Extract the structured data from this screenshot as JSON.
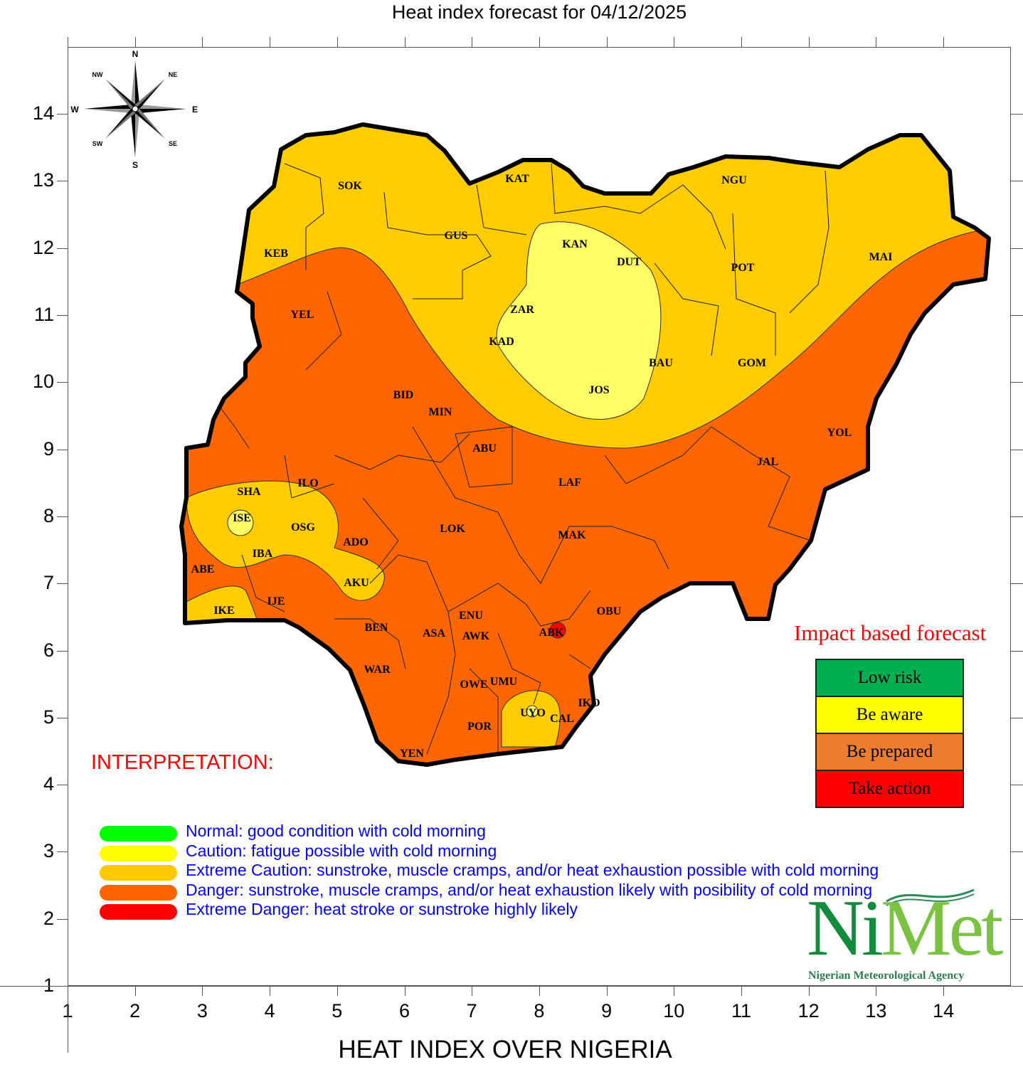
{
  "title": "Heat index forecast for 04/12/2025",
  "xlabel": "HEAT INDEX OVER NIGERIA",
  "axes": {
    "x_ticks": [
      "1",
      "2",
      "3",
      "4",
      "5",
      "6",
      "7",
      "8",
      "9",
      "10",
      "11",
      "12",
      "13",
      "14"
    ],
    "y_ticks": [
      "14",
      "13",
      "12",
      "11",
      "10",
      "9",
      "8",
      "7",
      "6",
      "5",
      "4",
      "3",
      "2",
      "1"
    ]
  },
  "compass": {
    "n": "N",
    "s": "S",
    "e": "E",
    "w": "W",
    "ne": "NE",
    "nw": "NW",
    "se": "SE",
    "sw": "SW"
  },
  "states": [
    "SOK",
    "KAT",
    "NGU",
    "KEB",
    "GUS",
    "KAN",
    "DUT",
    "POT",
    "MAI",
    "YEL",
    "ZAR",
    "KAD",
    "BAU",
    "GOM",
    "BID",
    "JOS",
    "MIN",
    "ABU",
    "YOL",
    "JAL",
    "LAF",
    "SHA",
    "ILO",
    "ISE",
    "OSG",
    "ADO",
    "LOK",
    "MAK",
    "IBA",
    "ABE",
    "AKU",
    "IJE",
    "IKE",
    "ENU",
    "OBU",
    "BEN",
    "ASA",
    "AWK",
    "ABK",
    "WAR",
    "OWE",
    "UMU",
    "IKO",
    "UYO",
    "CAL",
    "POR",
    "YEN"
  ],
  "impact_forecast": {
    "title": "Impact based forecast",
    "levels": [
      {
        "label": "Low risk",
        "color": "#00b050"
      },
      {
        "label": "Be aware",
        "color": "#ffff00"
      },
      {
        "label": "Be prepared",
        "color": "#ed7d31"
      },
      {
        "label": "Take action",
        "color": "#ff0000"
      }
    ]
  },
  "interpretation": {
    "heading": "INTERPRETATION:",
    "items": [
      {
        "text": "Normal: good condition with cold morning",
        "color": "#00ff00"
      },
      {
        "text": "Caution: fatigue possible  with cold morning",
        "color": "#ffff00"
      },
      {
        "text": "Extreme Caution: sunstroke, muscle cramps, and/or heat exhaustion possible  with cold morning",
        "color": "#ffc800"
      },
      {
        "text": "Danger: sunstroke, muscle cramps, and/or heat exhaustion likely with posibility of cold morning",
        "color": "#ff6400"
      },
      {
        "text": "Extreme Danger: heat stroke or sunstroke highly likely",
        "color": "#ff0000"
      }
    ]
  },
  "map_colors": {
    "danger": "#ff6600",
    "extreme_caution": "#ffcc00",
    "caution": "#ffff66",
    "extreme_danger": "#ff0000"
  },
  "logo": {
    "name_a": "Ni",
    "name_b": "Met",
    "subtitle": "Nigerian Meteorological Agency"
  }
}
